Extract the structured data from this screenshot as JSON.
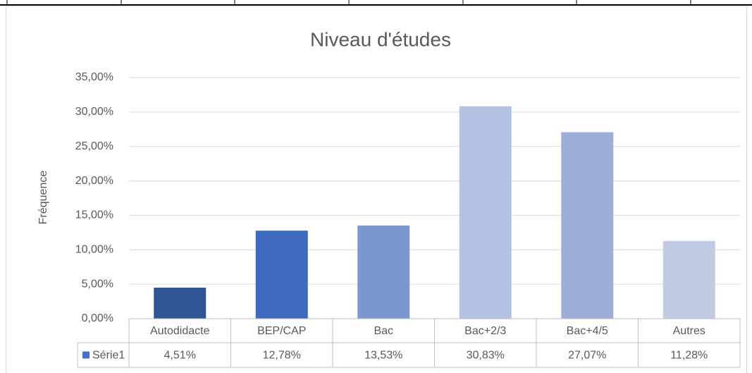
{
  "chart_data": {
    "type": "bar",
    "title": "Niveau d'études",
    "y_label": "Fréquence",
    "categories": [
      "Autodidacte",
      "BEP/CAP",
      "Bac",
      "Bac+2/3",
      "Bac+4/5",
      "Autres"
    ],
    "series": [
      {
        "name": "Série1",
        "color": "#4472c4",
        "colors": [
          "#2f5597",
          "#3e6bbd",
          "#7b96d0",
          "#b4c2e1",
          "#9dafd9",
          "#c1cbe4"
        ],
        "values": [
          4.51,
          12.78,
          13.53,
          30.83,
          27.07,
          11.28
        ],
        "value_labels": [
          "4,51%",
          "12,78%",
          "13,53%",
          "30,83%",
          "27,07%",
          "11,28%"
        ]
      }
    ],
    "ylim": [
      0,
      35
    ],
    "yticks": [
      {
        "value": 0,
        "label": "0,00%"
      },
      {
        "value": 5,
        "label": "5,00%"
      },
      {
        "value": 10,
        "label": "10,00%"
      },
      {
        "value": 15,
        "label": "15,00%"
      },
      {
        "value": 20,
        "label": "20,00%"
      },
      {
        "value": 25,
        "label": "25,00%"
      },
      {
        "value": 30,
        "label": "30,00%"
      },
      {
        "value": 35,
        "label": "35,00%"
      }
    ],
    "grid": true
  }
}
